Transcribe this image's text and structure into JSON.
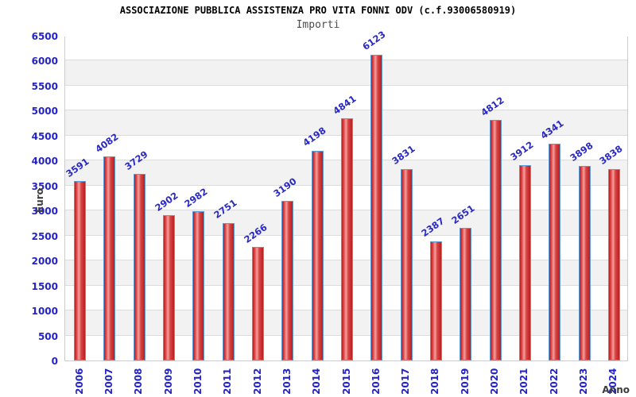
{
  "window": {
    "background": "#ffffff"
  },
  "chart_data": {
    "type": "bar",
    "title": "ASSOCIAZIONE PUBBLICA ASSISTENZA PRO VITA FONNI ODV (c.f.93006580919)",
    "subtitle": "Importi",
    "xlabel": "Anno",
    "ylabel": "Euro",
    "categories": [
      "2006",
      "2007",
      "2008",
      "2009",
      "2010",
      "2011",
      "2012",
      "2013",
      "2014",
      "2015",
      "2016",
      "2017",
      "2018",
      "2019",
      "2020",
      "2021",
      "2022",
      "2023",
      "2024"
    ],
    "values": [
      3591,
      4082,
      3729,
      2902,
      2982,
      2751,
      2266,
      3190,
      4198,
      4841,
      6123,
      3831,
      2387,
      2651,
      4812,
      3912,
      4341,
      3898,
      3838
    ],
    "ylim": [
      0,
      6500
    ],
    "ytick_step": 500,
    "yticks": [
      0,
      500,
      1000,
      1500,
      2000,
      2500,
      3000,
      3500,
      4000,
      4500,
      5000,
      5500,
      6000,
      6500
    ],
    "grid": true,
    "legend_position": "none",
    "bar_value_labels_shown": true,
    "style": {
      "tick_label_color": "#2323c8",
      "value_label_color": "#2a2ac2",
      "axis_title_color": "#3d3d3d",
      "title_color": "#000000",
      "subtitle_color": "#4d4d4d",
      "bar_border_color": "#5a9ad5",
      "bar_color_dark": "#b82020",
      "bar_color_mid": "#da4343",
      "bar_color_light": "#f2a09f",
      "band_fill": "#f2f2f2",
      "grid_line_color": "#dcdcdc",
      "plot_border_color": "#cccccc"
    }
  }
}
